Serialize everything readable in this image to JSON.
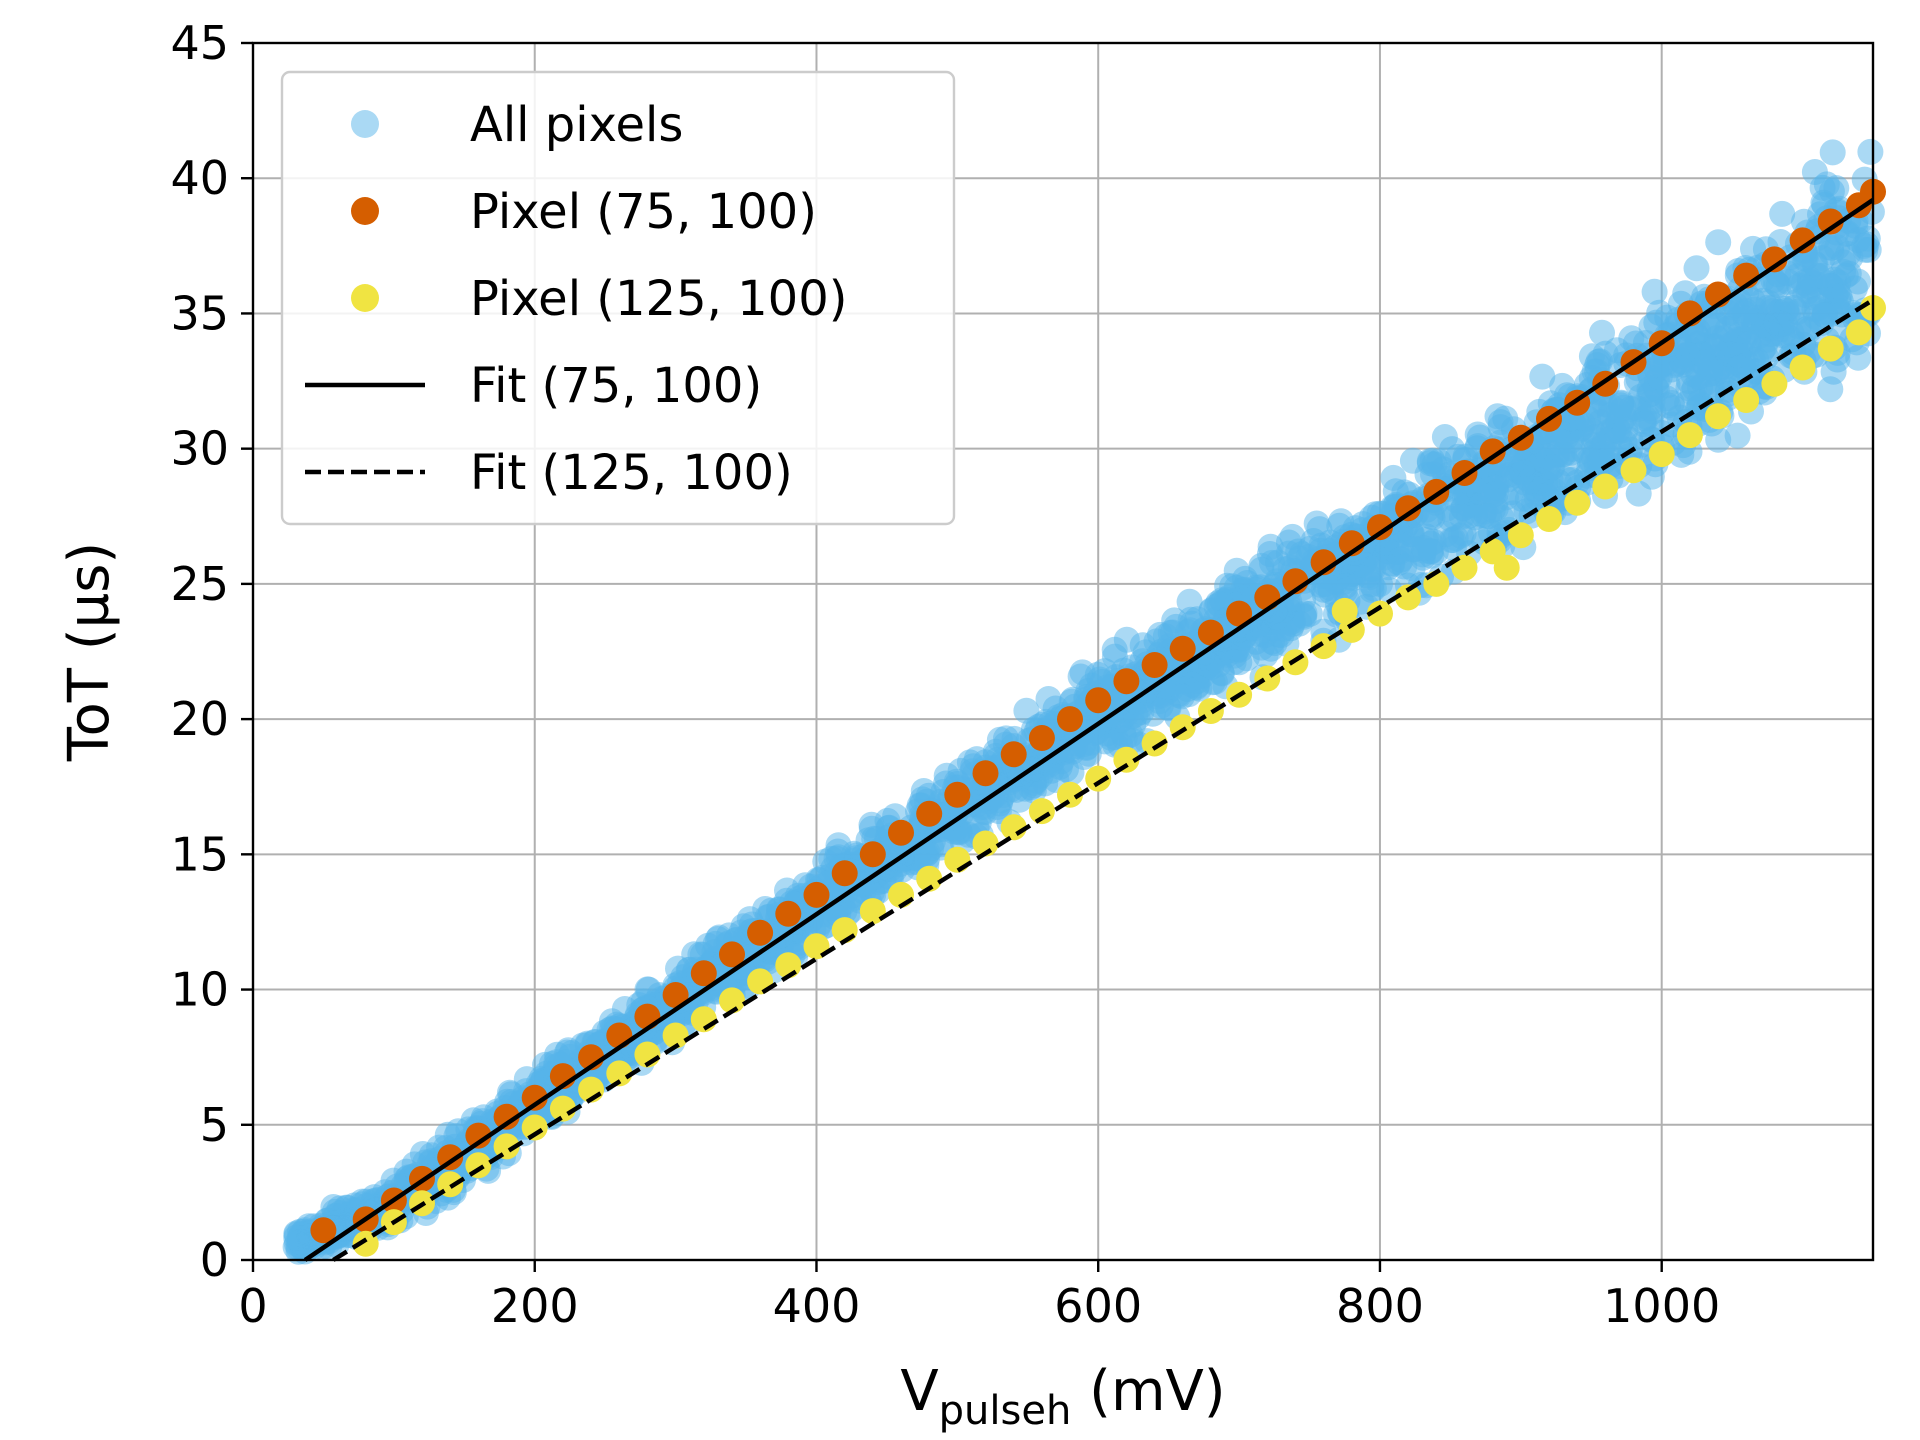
{
  "chart_data": {
    "type": "scatter",
    "title": "",
    "xlabel": {
      "main": "V",
      "sub": "pulseh",
      "unit": " (mV)"
    },
    "ylabel": "ToT (µs)",
    "xlim": [
      0,
      1150
    ],
    "ylim": [
      0,
      45
    ],
    "grid": true,
    "legend_placement": "top-left",
    "x_ticks": [
      {
        "value": 0,
        "label": "0"
      },
      {
        "value": 200,
        "label": "200"
      },
      {
        "value": 400,
        "label": "400"
      },
      {
        "value": 600,
        "label": "600"
      },
      {
        "value": 800,
        "label": "800"
      },
      {
        "value": 1000,
        "label": "1000"
      }
    ],
    "y_ticks": [
      {
        "value": 0,
        "label": "0"
      },
      {
        "value": 5,
        "label": "5"
      },
      {
        "value": 10,
        "label": "10"
      },
      {
        "value": 15,
        "label": "15"
      },
      {
        "value": 20,
        "label": "20"
      },
      {
        "value": 25,
        "label": "25"
      },
      {
        "value": 30,
        "label": "30"
      },
      {
        "value": 35,
        "label": "35"
      },
      {
        "value": 40,
        "label": "40"
      },
      {
        "value": 45,
        "label": "45"
      }
    ],
    "series": [
      {
        "name": "All pixels",
        "kind": "scatter",
        "color": "#56b4e9",
        "opacity": 0.5,
        "band": {
          "x": [
            30,
            100,
            200,
            300,
            400,
            500,
            600,
            700,
            800,
            900,
            1000,
            1100,
            1150
          ],
          "lower": [
            0.0,
            0.5,
            4.2,
            7.8,
            11.2,
            14.6,
            17.8,
            20.8,
            23.2,
            25.6,
            28.2,
            30.2,
            31.0
          ],
          "upper": [
            1.3,
            3.5,
            7.4,
            11.2,
            15.0,
            18.8,
            22.5,
            26.2,
            29.6,
            33.0,
            36.8,
            41.0,
            43.4
          ]
        }
      },
      {
        "name": "Pixel (75, 100)",
        "kind": "scatter",
        "color": "#d55e00",
        "x": [
          50,
          80,
          100,
          120,
          140,
          160,
          180,
          200,
          220,
          240,
          260,
          280,
          300,
          320,
          340,
          360,
          380,
          400,
          420,
          440,
          460,
          480,
          500,
          520,
          540,
          560,
          580,
          600,
          620,
          640,
          660,
          680,
          700,
          720,
          740,
          760,
          780,
          800,
          820,
          840,
          860,
          880,
          900,
          920,
          940,
          960,
          980,
          1000,
          1020,
          1040,
          1060,
          1080,
          1100,
          1120,
          1140,
          1150
        ],
        "y": [
          1.1,
          1.5,
          2.2,
          3.0,
          3.8,
          4.6,
          5.3,
          6.0,
          6.8,
          7.5,
          8.3,
          9.0,
          9.8,
          10.6,
          11.3,
          12.1,
          12.8,
          13.5,
          14.3,
          15.0,
          15.8,
          16.5,
          17.2,
          18.0,
          18.7,
          19.3,
          20.0,
          20.7,
          21.4,
          22.0,
          22.6,
          23.2,
          23.9,
          24.5,
          25.1,
          25.8,
          26.5,
          27.1,
          27.8,
          28.4,
          29.1,
          29.9,
          30.4,
          31.1,
          31.7,
          32.4,
          33.2,
          33.9,
          35.0,
          35.7,
          36.4,
          37.0,
          37.7,
          38.4,
          39.0,
          39.5
        ]
      },
      {
        "name": "Pixel (125, 100)",
        "kind": "scatter",
        "color": "#f0e442",
        "x": [
          80,
          100,
          120,
          140,
          160,
          180,
          200,
          220,
          240,
          260,
          280,
          300,
          320,
          340,
          360,
          380,
          400,
          420,
          440,
          460,
          480,
          500,
          520,
          540,
          560,
          580,
          600,
          620,
          640,
          660,
          680,
          700,
          720,
          740,
          760,
          775,
          780,
          800,
          820,
          840,
          860,
          880,
          890,
          900,
          920,
          940,
          960,
          980,
          1000,
          1020,
          1040,
          1060,
          1080,
          1100,
          1120,
          1140,
          1150
        ],
        "y": [
          0.6,
          1.4,
          2.1,
          2.8,
          3.5,
          4.2,
          4.9,
          5.6,
          6.3,
          6.9,
          7.6,
          8.3,
          8.9,
          9.6,
          10.3,
          10.9,
          11.6,
          12.2,
          12.9,
          13.5,
          14.1,
          14.8,
          15.4,
          16.0,
          16.6,
          17.2,
          17.8,
          18.5,
          19.1,
          19.7,
          20.3,
          20.9,
          21.5,
          22.1,
          22.7,
          24.0,
          23.3,
          23.9,
          24.5,
          25.0,
          25.6,
          26.2,
          25.6,
          26.8,
          27.4,
          28.0,
          28.6,
          29.2,
          29.8,
          30.5,
          31.2,
          31.8,
          32.4,
          33.0,
          33.7,
          34.3,
          35.2
        ]
      },
      {
        "name": "Fit (75, 100)",
        "kind": "line",
        "dash": "solid",
        "color": "#000000",
        "x": [
          37,
          1150
        ],
        "y": [
          0,
          39.2
        ]
      },
      {
        "name": "Fit (125, 100)",
        "kind": "line",
        "dash": "dashed",
        "color": "#000000",
        "x": [
          57,
          1150
        ],
        "y": [
          0,
          35.5
        ]
      }
    ]
  }
}
